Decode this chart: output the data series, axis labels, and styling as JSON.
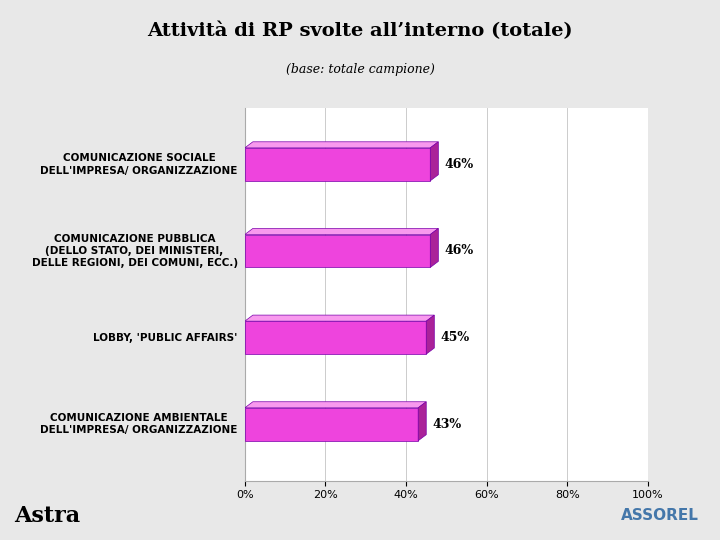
{
  "title": "Attività di RP svolte all’interno (totale)",
  "subtitle": "(base: totale campione)",
  "categories": [
    "COMUNICAZIONE SOCIALE\nDELL'IMPRESA/ ORGANIZZAZIONE",
    "COMUNICAZIONE PUBBLICA\n(DELLO STATO, DEI MINISTERI,\nDELLE REGIONI, DEI COMUNI, ECC.)",
    "LOBBY, 'PUBLIC AFFAIRS'",
    "COMUNICAZIONE AMBIENTALE\nDELL'IMPRESA/ ORGANIZZAZIONE"
  ],
  "values": [
    46,
    46,
    45,
    43
  ],
  "value_labels": [
    "46%",
    "46%",
    "45%",
    "43%"
  ],
  "bar_color_face": "#EE44DD",
  "bar_color_top": "#F899EE",
  "bar_color_right": "#AA2299",
  "bar_color_edge": "#7700AA",
  "xlim": [
    0,
    100
  ],
  "xticks": [
    0,
    20,
    40,
    60,
    80,
    100
  ],
  "xtick_labels": [
    "0%",
    "20%",
    "40%",
    "60%",
    "80%",
    "100%"
  ],
  "title_fontsize": 14,
  "subtitle_fontsize": 9,
  "label_fontsize": 7.5,
  "value_fontsize": 9,
  "tick_fontsize": 8,
  "bg_color": "#e8e8e8",
  "plot_bg_color": "#ffffff",
  "astra_text": "Astra",
  "assorel_text": "ASSOREL"
}
